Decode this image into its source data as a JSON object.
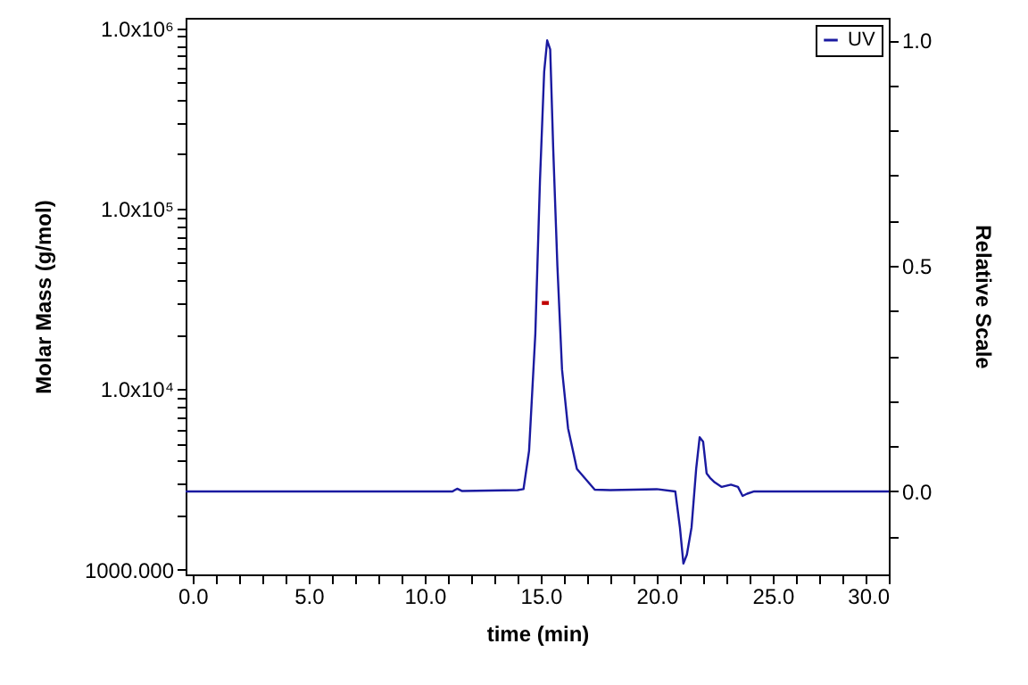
{
  "chart_data": {
    "type": "line",
    "xlabel": "time (min)",
    "ylabel": "Molar Mass (g/mol)",
    "y2label": "Relative Scale",
    "xlim": [
      -0.3,
      30
    ],
    "xticks": [
      {
        "value": 0,
        "label": "0.0"
      },
      {
        "value": 1,
        "label": null
      },
      {
        "value": 2,
        "label": null
      },
      {
        "value": 3,
        "label": null
      },
      {
        "value": 4,
        "label": null
      },
      {
        "value": 5,
        "label": "5.0"
      },
      {
        "value": 6,
        "label": null
      },
      {
        "value": 7,
        "label": null
      },
      {
        "value": 8,
        "label": null
      },
      {
        "value": 9,
        "label": null
      },
      {
        "value": 10,
        "label": "10.0"
      },
      {
        "value": 11,
        "label": null
      },
      {
        "value": 12,
        "label": null
      },
      {
        "value": 13,
        "label": null
      },
      {
        "value": 14,
        "label": null
      },
      {
        "value": 15,
        "label": "15.0"
      },
      {
        "value": 16,
        "label": null
      },
      {
        "value": 17,
        "label": null
      },
      {
        "value": 18,
        "label": null
      },
      {
        "value": 19,
        "label": null
      },
      {
        "value": 20,
        "label": "20.0"
      },
      {
        "value": 21,
        "label": null
      },
      {
        "value": 22,
        "label": null
      },
      {
        "value": 23,
        "label": null
      },
      {
        "value": 24,
        "label": null
      },
      {
        "value": 25,
        "label": "25.0"
      },
      {
        "value": 26,
        "label": null
      },
      {
        "value": 27,
        "label": null
      },
      {
        "value": 28,
        "label": null
      },
      {
        "value": 29,
        "label": null
      },
      {
        "value": 30,
        "label": "30.0"
      }
    ],
    "log": "y",
    "ylim": [
      940,
      1140000
    ],
    "yticks": [
      {
        "value": 1000,
        "label": "1000.000"
      },
      {
        "value": 2000,
        "label": null
      },
      {
        "value": 3000,
        "label": null
      },
      {
        "value": 4000,
        "label": null
      },
      {
        "value": 5000,
        "label": null
      },
      {
        "value": 6000,
        "label": null
      },
      {
        "value": 7000,
        "label": null
      },
      {
        "value": 8000,
        "label": null
      },
      {
        "value": 9000,
        "label": null
      },
      {
        "value": 10000,
        "label": "1.0x10⁴"
      },
      {
        "value": 20000,
        "label": null
      },
      {
        "value": 30000,
        "label": null
      },
      {
        "value": 40000,
        "label": null
      },
      {
        "value": 50000,
        "label": null
      },
      {
        "value": 60000,
        "label": null
      },
      {
        "value": 70000,
        "label": null
      },
      {
        "value": 80000,
        "label": null
      },
      {
        "value": 90000,
        "label": null
      },
      {
        "value": 100000,
        "label": "1.0x10⁵"
      },
      {
        "value": 200000,
        "label": null
      },
      {
        "value": 300000,
        "label": null
      },
      {
        "value": 400000,
        "label": null
      },
      {
        "value": 500000,
        "label": null
      },
      {
        "value": 600000,
        "label": null
      },
      {
        "value": 700000,
        "label": null
      },
      {
        "value": 800000,
        "label": null
      },
      {
        "value": 900000,
        "label": null
      },
      {
        "value": 1000000,
        "label": "1.0x10⁶"
      }
    ],
    "y2lim": [
      -0.184,
      1.05
    ],
    "y2ticks": [
      {
        "value": -0.1,
        "label": null
      },
      {
        "value": 0,
        "label": "0.0"
      },
      {
        "value": 0.1,
        "label": null
      },
      {
        "value": 0.2,
        "label": null
      },
      {
        "value": 0.3,
        "label": null
      },
      {
        "value": 0.4,
        "label": null
      },
      {
        "value": 0.5,
        "label": "0.5"
      },
      {
        "value": 0.6,
        "label": null
      },
      {
        "value": 0.7,
        "label": null
      },
      {
        "value": 0.8,
        "label": null
      },
      {
        "value": 0.9,
        "label": null
      },
      {
        "value": 1,
        "label": "1.0"
      }
    ],
    "legend": "top right",
    "series": [
      {
        "type": "line",
        "color": "#c00000",
        "x": [
          15.05,
          15.35
        ],
        "values": [
          30000,
          30000
        ]
      },
      {
        "name": "UV",
        "type": "line",
        "axis": "y2",
        "color": "#1a1aa0",
        "x": [
          -0.3,
          11.2,
          11.4,
          11.6,
          14.0,
          14.26,
          14.5,
          14.77,
          14.97,
          15.15,
          15.28,
          15.41,
          15.54,
          15.72,
          15.92,
          16.18,
          16.56,
          17.33,
          18.0,
          20.0,
          20.8,
          21.0,
          21.15,
          21.3,
          21.5,
          21.7,
          21.85,
          22.0,
          22.15,
          22.3,
          22.5,
          22.8,
          23.2,
          23.5,
          23.7,
          23.9,
          24.2,
          30
        ],
        "values": [
          0,
          0,
          0.006,
          0.001,
          0.003,
          0.005,
          0.09,
          0.35,
          0.69,
          0.93,
          1.0,
          0.98,
          0.76,
          0.5,
          0.27,
          0.14,
          0.05,
          0.004,
          0.003,
          0.005,
          0.0,
          -0.08,
          -0.16,
          -0.14,
          -0.08,
          0.05,
          0.12,
          0.11,
          0.04,
          0.03,
          0.02,
          0.01,
          0.015,
          0.01,
          -0.01,
          -0.005,
          0,
          0
        ]
      }
    ]
  }
}
